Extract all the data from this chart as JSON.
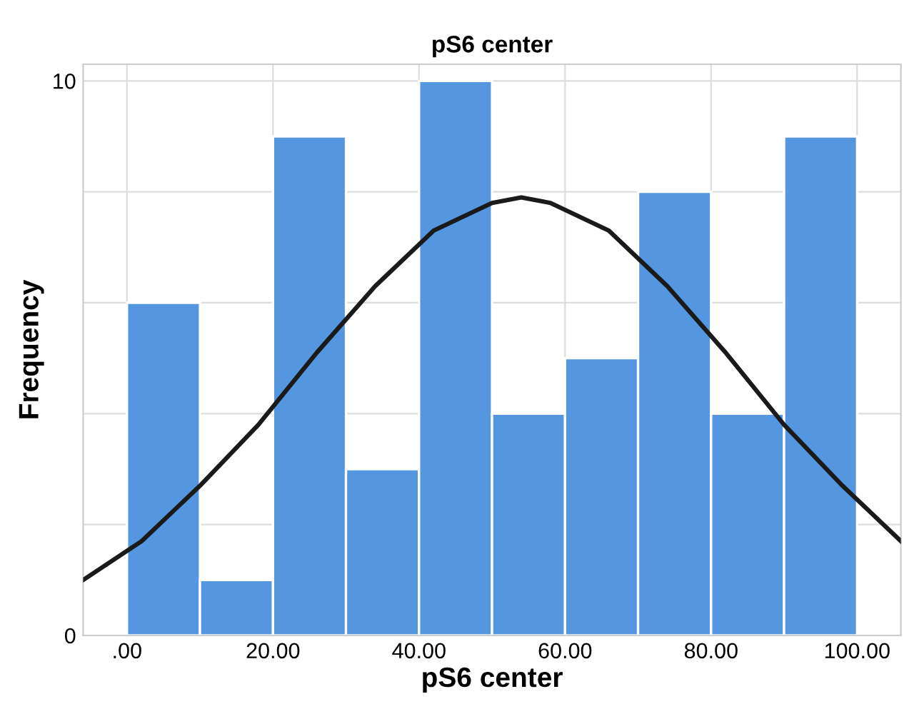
{
  "chart_data": {
    "type": "histogram",
    "title": "pS6 center",
    "xlabel": "pS6 center",
    "ylabel": "Frequency",
    "bins": [
      0,
      10,
      20,
      30,
      40,
      50,
      60,
      70,
      80,
      90,
      100
    ],
    "values": [
      6,
      1,
      9,
      3,
      10,
      4,
      5,
      8,
      4,
      9
    ],
    "color": "#5596e0",
    "series": [
      {
        "type": "line",
        "color": "#1a1a1a",
        "x": [
          -6,
          2,
          10,
          18,
          26,
          34,
          42,
          50,
          54,
          58,
          66,
          74,
          82,
          90,
          98,
          106
        ],
        "values": [
          1.0,
          1.7,
          2.7,
          3.8,
          5.1,
          6.3,
          7.3,
          7.8,
          7.9,
          7.8,
          7.3,
          6.3,
          5.1,
          3.8,
          2.7,
          1.7
        ]
      }
    ],
    "xlim": [
      -6,
      106
    ],
    "ylim": [
      0,
      10.3
    ],
    "xticks": [
      {
        "value": 0,
        "label": ".00"
      },
      {
        "value": 20,
        "label": "20.00"
      },
      {
        "value": 40,
        "label": "40.00"
      },
      {
        "value": 60,
        "label": "60.00"
      },
      {
        "value": 80,
        "label": "80.00"
      },
      {
        "value": 100,
        "label": "100.00"
      }
    ],
    "yticks": [
      0,
      {
        "value": 2,
        "label": null
      },
      {
        "value": 4,
        "label": null
      },
      {
        "value": 6,
        "label": null
      },
      {
        "value": 8,
        "label": null
      },
      10
    ],
    "grid": true
  }
}
